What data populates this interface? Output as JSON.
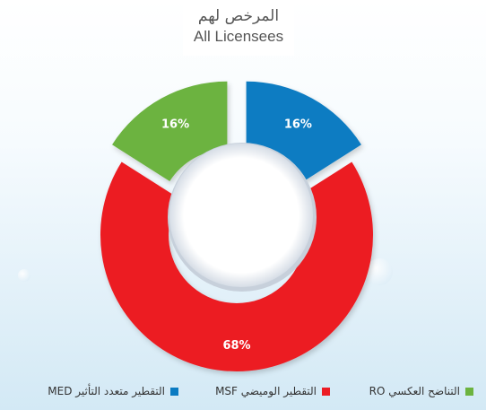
{
  "chart_data": {
    "type": "pie",
    "title": "المرخص لهم",
    "subtitle": "All Licensees",
    "donut": true,
    "legend_position": "bottom",
    "categories": [
      "MED",
      "MSF",
      "RO"
    ],
    "series": [
      {
        "values": [
          16,
          68,
          16
        ],
        "labels": [
          "16%",
          "68%",
          "16%"
        ]
      }
    ],
    "colors": [
      "#0b7bc2",
      "#ec1c24",
      "#6cb33f"
    ],
    "exploded": [
      "MED",
      "RO"
    ]
  },
  "legend": {
    "items": [
      {
        "text": "التقطير متعدد التأثير MED",
        "color": "#0b7bc2"
      },
      {
        "text": "التقطير الوميضي MSF",
        "color": "#ec1c24"
      },
      {
        "text": "التناضح العكسي RO",
        "color": "#6cb33f"
      }
    ]
  }
}
